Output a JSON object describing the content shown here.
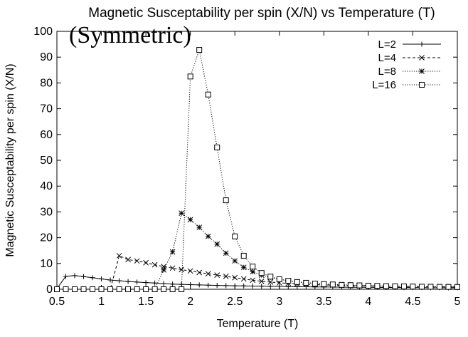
{
  "chart_data": {
    "type": "line",
    "title": "Magnetic Susceptability per spin (X/N) vs Temperature (T)",
    "annotation": "(Symmetric)",
    "xlabel": "Temperature (T)",
    "ylabel": "Magnetic Susceptability per spin (X/N)",
    "xlim": [
      0.5,
      5
    ],
    "ylim": [
      0,
      100
    ],
    "xticks": [
      0.5,
      1,
      1.5,
      2,
      2.5,
      3,
      3.5,
      4,
      4.5,
      5
    ],
    "xtick_labels": [
      "0.5",
      "1",
      "1.5",
      "2",
      "2.5",
      "3",
      "3.5",
      "4",
      "4.5",
      "5"
    ],
    "yticks": [
      0,
      10,
      20,
      30,
      40,
      50,
      60,
      70,
      80,
      90,
      100
    ],
    "ytick_labels": [
      "0",
      "10",
      "20",
      "30",
      "40",
      "50",
      "60",
      "70",
      "80",
      "90",
      "100"
    ],
    "grid": false,
    "legend_position": "top-right",
    "series": [
      {
        "name": "L=2",
        "marker": "plus",
        "dash": "solid",
        "x": [
          0.5,
          0.6,
          0.7,
          0.8,
          0.9,
          1.0,
          1.1,
          1.2,
          1.3,
          1.4,
          1.5,
          1.6,
          1.7,
          1.8,
          1.9,
          2.0,
          2.1,
          2.2,
          2.3,
          2.4,
          2.5,
          2.6,
          2.7,
          2.8,
          2.9,
          3.0,
          3.1,
          3.2,
          3.3,
          3.4,
          3.5,
          3.6,
          3.7,
          3.8,
          3.9,
          4.0,
          4.1,
          4.2,
          4.3,
          4.4,
          4.5,
          4.6,
          4.7,
          4.8,
          4.9,
          5.0
        ],
        "y": [
          0.3,
          5.0,
          5.3,
          4.9,
          4.5,
          4.0,
          3.6,
          3.3,
          3.0,
          2.8,
          2.6,
          2.4,
          2.2,
          2.0,
          1.9,
          1.8,
          1.7,
          1.6,
          1.5,
          1.4,
          1.35,
          1.3,
          1.25,
          1.2,
          1.15,
          1.1,
          1.05,
          1.0,
          0.95,
          0.9,
          0.88,
          0.85,
          0.82,
          0.8,
          0.77,
          0.75,
          0.72,
          0.7,
          0.68,
          0.66,
          0.64,
          0.62,
          0.6,
          0.58,
          0.56,
          0.55
        ]
      },
      {
        "name": "L=4",
        "marker": "x",
        "dash": "dashed",
        "x": [
          0.5,
          0.6,
          0.7,
          0.8,
          0.9,
          1.0,
          1.1,
          1.2,
          1.3,
          1.4,
          1.5,
          1.6,
          1.7,
          1.8,
          1.9,
          2.0,
          2.1,
          2.2,
          2.3,
          2.4,
          2.5,
          2.6,
          2.7,
          2.8,
          2.9,
          3.0,
          3.1,
          3.2,
          3.3,
          3.4,
          3.5,
          3.6,
          3.7,
          3.8,
          3.9,
          4.0,
          4.1,
          4.2,
          4.3,
          4.4,
          4.5,
          4.6,
          4.7,
          4.8,
          4.9,
          5.0
        ],
        "y": [
          0,
          0,
          0,
          0,
          0,
          0,
          0,
          13.0,
          11.5,
          11.0,
          10.3,
          9.5,
          8.8,
          8.2,
          7.6,
          7.1,
          6.5,
          6.0,
          5.5,
          5.0,
          4.5,
          4.0,
          3.5,
          3.1,
          2.8,
          2.5,
          2.3,
          2.1,
          1.9,
          1.8,
          1.7,
          1.6,
          1.5,
          1.4,
          1.35,
          1.3,
          1.25,
          1.2,
          1.15,
          1.1,
          1.05,
          1.0,
          0.97,
          0.94,
          0.91,
          0.88
        ]
      },
      {
        "name": "L=8",
        "marker": "star",
        "dash": "dotted",
        "x": [
          0.5,
          0.6,
          0.7,
          0.8,
          0.9,
          1.0,
          1.1,
          1.2,
          1.3,
          1.4,
          1.5,
          1.6,
          1.7,
          1.8,
          1.9,
          2.0,
          2.1,
          2.2,
          2.3,
          2.4,
          2.5,
          2.6,
          2.7,
          2.8,
          2.9,
          3.0,
          3.1,
          3.2,
          3.3,
          3.4,
          3.5,
          3.6,
          3.7,
          3.8,
          3.9,
          4.0,
          4.1,
          4.2,
          4.3,
          4.4,
          4.5,
          4.6,
          4.7,
          4.8,
          4.9,
          5.0
        ],
        "y": [
          0,
          0,
          0,
          0,
          0,
          0,
          0,
          0,
          0,
          0,
          0,
          0,
          7.5,
          14.5,
          29.5,
          27.0,
          24.0,
          20.5,
          17.5,
          14.0,
          11.0,
          8.5,
          6.8,
          5.5,
          4.6,
          3.9,
          3.3,
          2.9,
          2.6,
          2.3,
          2.1,
          1.9,
          1.75,
          1.6,
          1.5,
          1.4,
          1.3,
          1.2,
          1.15,
          1.1,
          1.05,
          1.0,
          0.97,
          0.94,
          0.91,
          0.88
        ]
      },
      {
        "name": "L=16",
        "marker": "square",
        "dash": "dotted",
        "x": [
          0.5,
          0.6,
          0.7,
          0.8,
          0.9,
          1.0,
          1.1,
          1.2,
          1.3,
          1.4,
          1.5,
          1.6,
          1.7,
          1.8,
          1.9,
          2.0,
          2.1,
          2.2,
          2.3,
          2.4,
          2.5,
          2.6,
          2.7,
          2.8,
          2.9,
          3.0,
          3.1,
          3.2,
          3.3,
          3.4,
          3.5,
          3.6,
          3.7,
          3.8,
          3.9,
          4.0,
          4.1,
          4.2,
          4.3,
          4.4,
          4.5,
          4.6,
          4.7,
          4.8,
          4.9,
          5.0
        ],
        "y": [
          0,
          0,
          0,
          0,
          0,
          0,
          0,
          0,
          0,
          0,
          0,
          0,
          0,
          0,
          0,
          82.5,
          92.8,
          75.5,
          55.0,
          34.5,
          20.5,
          13.0,
          8.8,
          6.3,
          4.9,
          3.9,
          3.3,
          2.8,
          2.5,
          2.2,
          2.0,
          1.85,
          1.7,
          1.6,
          1.5,
          1.4,
          1.3,
          1.2,
          1.15,
          1.1,
          1.05,
          1.0,
          0.97,
          0.94,
          0.91,
          0.88
        ]
      }
    ]
  }
}
